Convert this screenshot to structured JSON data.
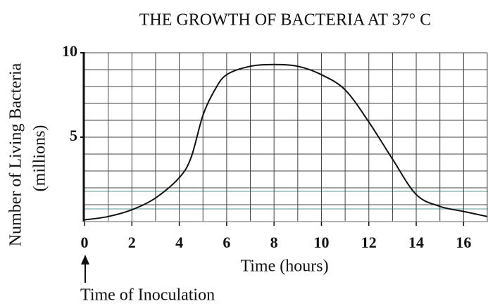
{
  "chart_data": {
    "type": "line",
    "title": "THE GROWTH OF BACTERIA AT 37° C",
    "y_label": [
      "Number of Living Bacteria",
      "(millions)"
    ],
    "x_label": "Time (hours)",
    "annotation": "Time of Inoculation",
    "x": [
      0,
      1,
      2,
      3,
      4,
      4.5,
      5,
      5.5,
      6,
      7,
      8,
      9,
      10,
      11,
      12,
      13,
      14,
      15,
      16,
      17
    ],
    "values": [
      0.1,
      0.3,
      0.7,
      1.4,
      2.6,
      3.8,
      6.3,
      7.8,
      8.7,
      9.2,
      9.3,
      9.2,
      8.7,
      7.8,
      5.9,
      3.7,
      1.6,
      0.9,
      0.6,
      0.3
    ],
    "color": "#111111",
    "xlim": [
      0,
      17
    ],
    "ylim": [
      0,
      10
    ],
    "xticks": [
      0,
      2,
      4,
      6,
      8,
      10,
      12,
      14,
      16
    ],
    "yticks": [
      5,
      10
    ],
    "xgrid": [
      1,
      2,
      3,
      4,
      5,
      6,
      7,
      8,
      9,
      10,
      11,
      12,
      13,
      14,
      15,
      16,
      17
    ],
    "ygrid": [
      1,
      2,
      3,
      4,
      5,
      6,
      7,
      8,
      9,
      10
    ],
    "grid": true
  }
}
